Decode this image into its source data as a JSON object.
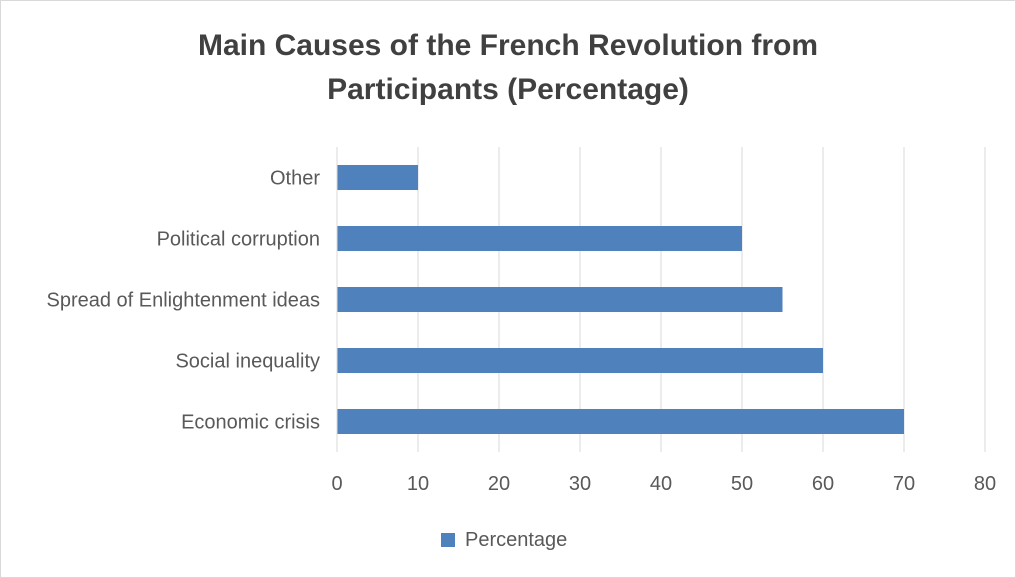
{
  "colors": {
    "bar": "#4f81bd",
    "grid": "#d9d9d9",
    "text": "#595959",
    "title": "#404040"
  },
  "chart_data": {
    "type": "bar",
    "orientation": "horizontal",
    "title_lines": [
      "Main Causes of the French Revolution from",
      "Participants (Percentage)"
    ],
    "categories": [
      "Other",
      "Political corruption",
      "Spread of Enlightenment ideas",
      "Social inequality",
      "Economic crisis"
    ],
    "series": [
      {
        "name": "Percentage",
        "values": [
          10,
          50,
          55,
          60,
          70
        ]
      }
    ],
    "xlim": [
      0,
      80
    ],
    "xticks": [
      0,
      10,
      20,
      30,
      40,
      50,
      60,
      70,
      80
    ],
    "grid": true,
    "legend": "bottom"
  }
}
